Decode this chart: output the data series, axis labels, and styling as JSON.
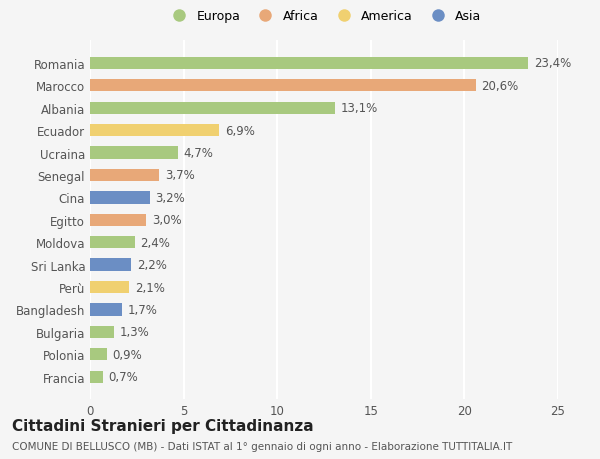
{
  "categories": [
    "Francia",
    "Polonia",
    "Bulgaria",
    "Bangladesh",
    "Perù",
    "Sri Lanka",
    "Moldova",
    "Egitto",
    "Cina",
    "Senegal",
    "Ucraina",
    "Ecuador",
    "Albania",
    "Marocco",
    "Romania"
  ],
  "values": [
    0.7,
    0.9,
    1.3,
    1.7,
    2.1,
    2.2,
    2.4,
    3.0,
    3.2,
    3.7,
    4.7,
    6.9,
    13.1,
    20.6,
    23.4
  ],
  "labels": [
    "0,7%",
    "0,9%",
    "1,3%",
    "1,7%",
    "2,1%",
    "2,2%",
    "2,4%",
    "3,0%",
    "3,2%",
    "3,7%",
    "4,7%",
    "6,9%",
    "13,1%",
    "20,6%",
    "23,4%"
  ],
  "colors": [
    "#a8c97f",
    "#a8c97f",
    "#a8c97f",
    "#6b8ec4",
    "#f0d070",
    "#6b8ec4",
    "#a8c97f",
    "#e8a878",
    "#6b8ec4",
    "#e8a878",
    "#a8c97f",
    "#f0d070",
    "#a8c97f",
    "#e8a878",
    "#a8c97f"
  ],
  "legend_labels": [
    "Europa",
    "Africa",
    "America",
    "Asia"
  ],
  "legend_colors": [
    "#a8c97f",
    "#e8a878",
    "#f0d070",
    "#6b8ec4"
  ],
  "title": "Cittadini Stranieri per Cittadinanza",
  "subtitle": "COMUNE DI BELLUSCO (MB) - Dati ISTAT al 1° gennaio di ogni anno - Elaborazione TUTTITALIA.IT",
  "xlim": [
    0,
    25
  ],
  "xticks": [
    0,
    5,
    10,
    15,
    20,
    25
  ],
  "background_color": "#f5f5f5",
  "grid_color": "#ffffff",
  "bar_height": 0.55,
  "label_fontsize": 8.5,
  "tick_fontsize": 8.5,
  "title_fontsize": 11,
  "subtitle_fontsize": 7.5
}
